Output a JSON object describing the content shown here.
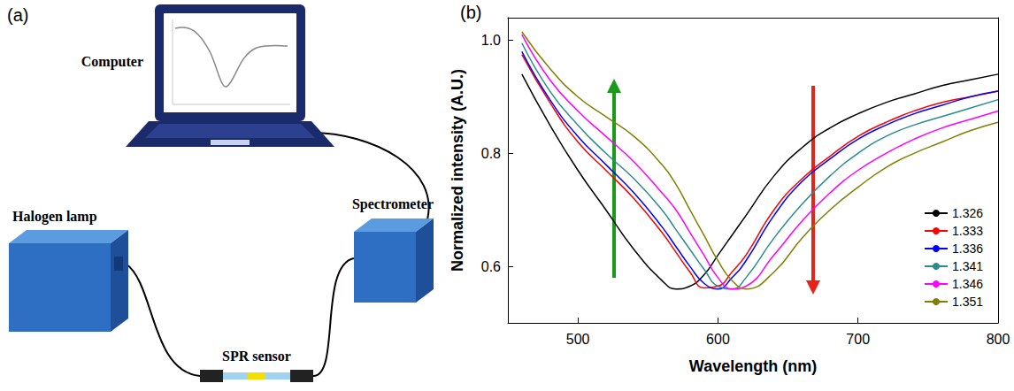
{
  "diagram": {
    "panel": "(a)",
    "nodes": [
      {
        "label": "Computer"
      },
      {
        "label": "Halogen lamp"
      },
      {
        "label": "Spectrometer"
      },
      {
        "label": "SPR sensor"
      }
    ]
  },
  "chart_data": {
    "panel": "(b)",
    "type": "line",
    "x_label": "Wavelength (nm)",
    "y_label": "Normalized intensity (A.U.)",
    "x": [
      460,
      480,
      500,
      520,
      540,
      560,
      570,
      580,
      590,
      600,
      610,
      620,
      640,
      660,
      680,
      700,
      720,
      740,
      760,
      780,
      800
    ],
    "series": [
      {
        "name": "1.326",
        "color": "#000000",
        "values": [
          0.94,
          0.85,
          0.77,
          0.7,
          0.63,
          0.575,
          0.56,
          0.565,
          0.585,
          0.62,
          0.655,
          0.69,
          0.76,
          0.81,
          0.845,
          0.87,
          0.89,
          0.905,
          0.92,
          0.93,
          0.94
        ]
      },
      {
        "name": "1.333",
        "color": "#ff0000",
        "values": [
          0.975,
          0.89,
          0.82,
          0.77,
          0.72,
          0.66,
          0.625,
          0.59,
          0.562,
          0.565,
          0.59,
          0.62,
          0.7,
          0.755,
          0.795,
          0.83,
          0.855,
          0.875,
          0.89,
          0.9,
          0.91
        ]
      },
      {
        "name": "1.336",
        "color": "#0000ff",
        "values": [
          0.98,
          0.895,
          0.83,
          0.78,
          0.73,
          0.67,
          0.635,
          0.6,
          0.57,
          0.56,
          0.58,
          0.61,
          0.69,
          0.75,
          0.79,
          0.825,
          0.85,
          0.87,
          0.885,
          0.9,
          0.91
        ]
      },
      {
        "name": "1.341",
        "color": "#2a8c8c",
        "values": [
          0.995,
          0.91,
          0.85,
          0.8,
          0.755,
          0.7,
          0.665,
          0.63,
          0.595,
          0.565,
          0.56,
          0.58,
          0.65,
          0.71,
          0.76,
          0.8,
          0.83,
          0.85,
          0.865,
          0.88,
          0.895
        ]
      },
      {
        "name": "1.346",
        "color": "#ff00ff",
        "values": [
          1.01,
          0.93,
          0.875,
          0.83,
          0.785,
          0.73,
          0.7,
          0.66,
          0.62,
          0.58,
          0.56,
          0.565,
          0.62,
          0.68,
          0.73,
          0.77,
          0.8,
          0.825,
          0.845,
          0.86,
          0.875
        ]
      },
      {
        "name": "1.351",
        "color": "#808000",
        "values": [
          1.015,
          0.95,
          0.9,
          0.865,
          0.83,
          0.78,
          0.745,
          0.7,
          0.655,
          0.61,
          0.575,
          0.56,
          0.59,
          0.65,
          0.7,
          0.74,
          0.775,
          0.8,
          0.82,
          0.84,
          0.855
        ]
      }
    ],
    "xlim": [
      450,
      800
    ],
    "xticks": [
      500,
      600,
      700,
      800
    ],
    "ylim": [
      0.5,
      1.04
    ],
    "yticks": [
      0.6,
      0.8,
      {
        "value": 1,
        "label": "1.0"
      }
    ],
    "legend": "lower right",
    "grid": false
  }
}
